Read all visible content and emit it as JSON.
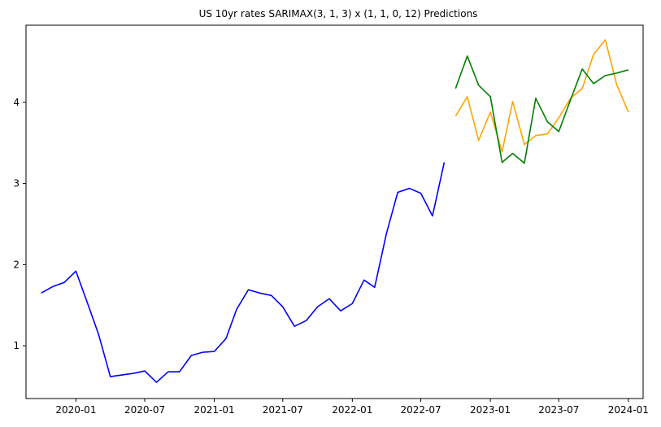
{
  "chart_data": {
    "type": "line",
    "title": "US 10yr rates SARIMAX(3, 1, 3) x (1, 1, 0, 12) Predictions",
    "xlabel": "",
    "ylabel": "",
    "x_axis": {
      "type": "date",
      "range": [
        "2019-08-22",
        "2024-02-09"
      ],
      "ticks": [
        "2020-01",
        "2020-07",
        "2021-01",
        "2021-07",
        "2022-01",
        "2022-07",
        "2023-01",
        "2023-07",
        "2024-01"
      ],
      "tick_dates": [
        "2020-01-01",
        "2020-07-01",
        "2021-01-01",
        "2021-07-01",
        "2022-01-01",
        "2022-07-01",
        "2023-01-01",
        "2023-07-01",
        "2024-01-01"
      ]
    },
    "y_axis": {
      "range": [
        0.35,
        4.95
      ],
      "ticks": [
        1,
        2,
        3,
        4
      ]
    },
    "grid": false,
    "legend": "none",
    "series": [
      {
        "color": "#0000ff",
        "points": [
          [
            "2019-10-01",
            1.65
          ],
          [
            "2019-11-01",
            1.73
          ],
          [
            "2019-12-01",
            1.78
          ],
          [
            "2020-01-01",
            1.92
          ],
          [
            "2020-02-01",
            1.52
          ],
          [
            "2020-03-01",
            1.14
          ],
          [
            "2020-04-01",
            0.62
          ],
          [
            "2020-05-01",
            0.64
          ],
          [
            "2020-06-01",
            0.66
          ],
          [
            "2020-07-01",
            0.69
          ],
          [
            "2020-08-01",
            0.55
          ],
          [
            "2020-09-01",
            0.68
          ],
          [
            "2020-10-01",
            0.68
          ],
          [
            "2020-11-01",
            0.88
          ],
          [
            "2020-12-01",
            0.92
          ],
          [
            "2021-01-01",
            0.93
          ],
          [
            "2021-02-01",
            1.09
          ],
          [
            "2021-03-01",
            1.45
          ],
          [
            "2021-04-01",
            1.69
          ],
          [
            "2021-05-01",
            1.65
          ],
          [
            "2021-06-01",
            1.62
          ],
          [
            "2021-07-01",
            1.48
          ],
          [
            "2021-08-01",
            1.24
          ],
          [
            "2021-09-01",
            1.31
          ],
          [
            "2021-10-01",
            1.48
          ],
          [
            "2021-11-01",
            1.58
          ],
          [
            "2021-12-01",
            1.43
          ],
          [
            "2022-01-01",
            1.52
          ],
          [
            "2022-02-01",
            1.81
          ],
          [
            "2022-03-01",
            1.72
          ],
          [
            "2022-04-01",
            2.38
          ],
          [
            "2022-05-01",
            2.89
          ],
          [
            "2022-06-01",
            2.94
          ],
          [
            "2022-07-01",
            2.88
          ],
          [
            "2022-08-01",
            2.6
          ],
          [
            "2022-09-01",
            3.26
          ]
        ]
      },
      {
        "color": "#ffa500",
        "points": [
          [
            "2022-10-01",
            3.83
          ],
          [
            "2022-11-01",
            4.07
          ],
          [
            "2022-12-01",
            3.53
          ],
          [
            "2023-01-01",
            3.88
          ],
          [
            "2023-02-01",
            3.39
          ],
          [
            "2023-03-01",
            4.01
          ],
          [
            "2023-04-01",
            3.48
          ],
          [
            "2023-05-01",
            3.59
          ],
          [
            "2023-06-01",
            3.61
          ],
          [
            "2023-07-01",
            3.81
          ],
          [
            "2023-08-01",
            4.05
          ],
          [
            "2023-09-01",
            4.17
          ],
          [
            "2023-10-01",
            4.59
          ],
          [
            "2023-11-01",
            4.77
          ],
          [
            "2023-12-01",
            4.22
          ],
          [
            "2024-01-01",
            3.88
          ]
        ]
      },
      {
        "color": "#008000",
        "points": [
          [
            "2022-10-01",
            4.17
          ],
          [
            "2022-11-01",
            4.57
          ],
          [
            "2022-12-01",
            4.21
          ],
          [
            "2023-01-01",
            4.07
          ],
          [
            "2023-02-01",
            3.26
          ],
          [
            "2023-03-01",
            3.37
          ],
          [
            "2023-04-01",
            3.25
          ],
          [
            "2023-05-01",
            4.05
          ],
          [
            "2023-06-01",
            3.76
          ],
          [
            "2023-07-01",
            3.64
          ],
          [
            "2023-08-01",
            4.03
          ],
          [
            "2023-09-01",
            4.41
          ],
          [
            "2023-10-01",
            4.23
          ],
          [
            "2023-11-01",
            4.33
          ],
          [
            "2023-12-01",
            4.36
          ],
          [
            "2024-01-01",
            4.4
          ]
        ]
      }
    ]
  }
}
